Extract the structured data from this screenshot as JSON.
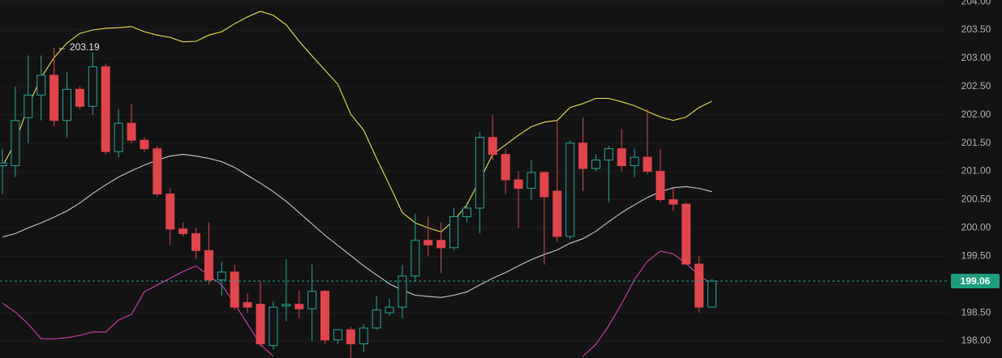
{
  "chart_data": {
    "type": "candlestick",
    "open": [
      201.1,
      201.1,
      201.95,
      202.35,
      202.7,
      201.9,
      202.45,
      202.15,
      202.85,
      201.35,
      201.85,
      201.55,
      201.4,
      200.6,
      199.98,
      199.9,
      199.6,
      199.08,
      199.22,
      198.68,
      198.65,
      197.92,
      198.62,
      198.65,
      198.57,
      198.88,
      198.02,
      198.2,
      197.95,
      198.23,
      198.5,
      198.6,
      199.15,
      199.78,
      199.78,
      199.65,
      200.2,
      200.35,
      201.6,
      201.3,
      200.85,
      200.7,
      200.98,
      200.65,
      199.85,
      201.5,
      201.05,
      201.2,
      201.4,
      201.1,
      201.25,
      201.0,
      200.5,
      200.42,
      199.36,
      198.6
    ],
    "high": [
      201.4,
      202.5,
      203.05,
      203.05,
      203.19,
      202.75,
      202.5,
      203.1,
      202.9,
      202.1,
      202.2,
      201.6,
      201.45,
      200.7,
      200.1,
      200.0,
      200.1,
      199.4,
      199.35,
      198.85,
      199.05,
      198.7,
      199.45,
      198.9,
      199.35,
      198.9,
      198.2,
      198.25,
      198.3,
      198.8,
      198.75,
      199.35,
      200.25,
      200.2,
      200.1,
      200.35,
      200.45,
      201.7,
      202.0,
      201.4,
      201.0,
      201.2,
      201.0,
      201.9,
      201.55,
      201.95,
      201.3,
      201.45,
      201.75,
      201.4,
      202.1,
      201.4,
      200.7,
      200.45,
      199.5,
      199.1
    ],
    "low": [
      200.6,
      200.9,
      201.5,
      201.9,
      201.8,
      201.6,
      202.1,
      202.0,
      201.3,
      201.25,
      201.5,
      201.35,
      200.55,
      199.7,
      199.85,
      199.45,
      199.0,
      198.8,
      198.55,
      198.5,
      197.9,
      197.85,
      198.35,
      198.4,
      198.0,
      197.95,
      197.95,
      197.7,
      197.8,
      198.2,
      198.45,
      198.4,
      199.05,
      199.5,
      199.2,
      199.6,
      200.1,
      199.9,
      201.2,
      200.6,
      200.0,
      200.5,
      199.35,
      199.75,
      199.8,
      200.65,
      201.0,
      200.45,
      201.0,
      200.9,
      200.95,
      200.45,
      200.3,
      199.35,
      198.5,
      198.6
    ],
    "close": [
      201.15,
      201.9,
      202.35,
      202.7,
      201.9,
      202.45,
      202.15,
      202.85,
      201.35,
      201.85,
      201.55,
      201.4,
      200.6,
      199.98,
      199.9,
      199.6,
      199.08,
      199.22,
      198.6,
      198.6,
      197.95,
      198.6,
      198.65,
      198.57,
      198.88,
      198.02,
      198.2,
      197.95,
      198.23,
      198.55,
      198.6,
      199.15,
      199.78,
      199.7,
      199.65,
      200.2,
      200.35,
      201.6,
      201.3,
      200.85,
      200.7,
      200.98,
      200.55,
      199.85,
      201.5,
      201.05,
      201.2,
      201.4,
      201.1,
      201.25,
      201.0,
      200.5,
      200.42,
      199.36,
      198.6,
      199.06
    ],
    "up_color": "#26a69a",
    "down_color": "#e0454b",
    "overlays": [
      {
        "color": "#e8e24a",
        "values": [
          201.09,
          201.51,
          202.16,
          202.66,
          203.01,
          203.27,
          203.44,
          203.5,
          203.53,
          203.54,
          203.56,
          203.47,
          203.41,
          203.37,
          203.29,
          203.3,
          203.41,
          203.47,
          203.61,
          203.73,
          203.83,
          203.76,
          203.59,
          203.3,
          203.04,
          202.79,
          202.54,
          202.01,
          201.73,
          201.23,
          200.76,
          200.27,
          200.09,
          200.0,
          199.93,
          200.13,
          200.41,
          200.84,
          201.3,
          201.47,
          201.64,
          201.79,
          201.87,
          201.9,
          202.13,
          202.2,
          202.29,
          202.29,
          202.23,
          202.16,
          202.06,
          201.96,
          201.9,
          201.96,
          202.13,
          202.24
        ]
      },
      {
        "color": "#c9c9c9",
        "values": [
          199.84,
          199.9,
          200.0,
          200.09,
          200.19,
          200.3,
          200.44,
          200.61,
          200.76,
          200.9,
          201.01,
          201.11,
          201.2,
          201.27,
          201.3,
          201.27,
          201.23,
          201.17,
          201.07,
          200.93,
          200.79,
          200.64,
          200.47,
          200.27,
          200.07,
          199.87,
          199.69,
          199.51,
          199.33,
          199.17,
          199.01,
          198.9,
          198.81,
          198.79,
          198.77,
          198.81,
          198.87,
          198.99,
          199.11,
          199.21,
          199.33,
          199.44,
          199.53,
          199.61,
          199.73,
          199.81,
          199.94,
          200.11,
          200.27,
          200.41,
          200.54,
          200.64,
          200.71,
          200.73,
          200.7,
          200.64
        ]
      },
      {
        "color": "#d43fae",
        "values": [
          198.67,
          198.51,
          198.3,
          198.04,
          198.04,
          198.06,
          198.1,
          198.16,
          198.16,
          198.37,
          198.47,
          198.87,
          198.99,
          199.11,
          199.23,
          199.33,
          199.16,
          198.99,
          198.66,
          198.3,
          197.94,
          197.73,
          null,
          null,
          null,
          null,
          null,
          null,
          null,
          null,
          null,
          null,
          null,
          null,
          null,
          null,
          null,
          null,
          null,
          null,
          null,
          null,
          null,
          null,
          null,
          197.73,
          197.94,
          198.27,
          198.66,
          199.09,
          199.41,
          199.59,
          199.54,
          199.37,
          199.16,
          199.01
        ]
      }
    ],
    "ylim": [
      197.7,
      204.03
    ],
    "yticks": [
      {
        "value": 198,
        "label": "198.00"
      },
      {
        "value": 198.5,
        "label": "198.50"
      },
      {
        "value": 199,
        "label": "199.00"
      },
      {
        "value": 199.5,
        "label": "199.50"
      },
      {
        "value": 200,
        "label": "200.00"
      },
      {
        "value": 200.5,
        "label": "200.50"
      },
      {
        "value": 201,
        "label": "201.00"
      },
      {
        "value": 201.5,
        "label": "201.50"
      },
      {
        "value": 202,
        "label": "202.00"
      },
      {
        "value": 202.5,
        "label": "202.50"
      },
      {
        "value": 203,
        "label": "203.00"
      },
      {
        "value": 203.5,
        "label": "203.50"
      },
      {
        "value": 204,
        "label": "204.00"
      }
    ],
    "grid": true,
    "last_price": 199.06,
    "high_label": "← 203.19"
  }
}
